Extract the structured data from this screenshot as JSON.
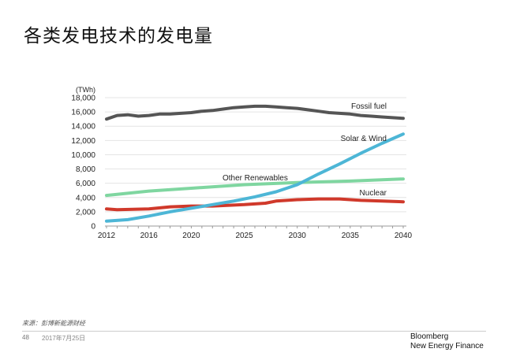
{
  "title": "各类发电技术的发电量",
  "chart_data": {
    "type": "line",
    "ylabel": "(TWh)",
    "xlim": [
      2012,
      2040
    ],
    "ylim": [
      0,
      18000
    ],
    "xticks": [
      2012,
      2016,
      2020,
      2025,
      2030,
      2035,
      2040
    ],
    "yticks": [
      0,
      2000,
      4000,
      6000,
      8000,
      10000,
      12000,
      14000,
      16000,
      18000
    ],
    "ytick_labels": [
      "0",
      "2,000",
      "4,000",
      "6,000",
      "8,000",
      "10,000",
      "12,000",
      "14,000",
      "16,000",
      "18,000"
    ],
    "grid": true,
    "series": [
      {
        "name": "Fossil fuel",
        "color": "#555555",
        "x": [
          2012,
          2013,
          2014,
          2015,
          2016,
          2017,
          2018,
          2019,
          2020,
          2021,
          2022,
          2023,
          2024,
          2025,
          2026,
          2027,
          2028,
          2029,
          2030,
          2031,
          2032,
          2033,
          2034,
          2035,
          2036,
          2037,
          2038,
          2039,
          2040
        ],
        "values": [
          15000,
          15500,
          15600,
          15400,
          15500,
          15700,
          15700,
          15800,
          15900,
          16100,
          16200,
          16400,
          16600,
          16700,
          16800,
          16800,
          16700,
          16600,
          16500,
          16300,
          16100,
          15900,
          15800,
          15700,
          15500,
          15400,
          15300,
          15200,
          15100
        ]
      },
      {
        "name": "Solar & Wind",
        "color": "#4db6d6",
        "x": [
          2012,
          2014,
          2016,
          2018,
          2020,
          2022,
          2024,
          2026,
          2028,
          2030,
          2032,
          2034,
          2036,
          2038,
          2040
        ],
        "values": [
          700,
          900,
          1400,
          2000,
          2500,
          3000,
          3500,
          4100,
          4800,
          5800,
          7300,
          8700,
          10200,
          11600,
          12900
        ]
      },
      {
        "name": "Other Renewables",
        "color": "#7fd6a0",
        "x": [
          2012,
          2016,
          2020,
          2025,
          2030,
          2035,
          2040
        ],
        "values": [
          4300,
          4900,
          5300,
          5800,
          6100,
          6300,
          6600
        ]
      },
      {
        "name": "Nuclear",
        "color": "#d0392b",
        "x": [
          2012,
          2013,
          2016,
          2018,
          2020,
          2022,
          2025,
          2027,
          2028,
          2030,
          2032,
          2034,
          2036,
          2038,
          2040
        ],
        "values": [
          2400,
          2300,
          2400,
          2700,
          2800,
          2800,
          3000,
          3200,
          3500,
          3700,
          3800,
          3800,
          3600,
          3500,
          3400
        ]
      }
    ]
  },
  "footer": {
    "source": "来源：彭博新能源财经",
    "page": "48",
    "date": "2017年7月25日",
    "logo_line1": "Bloomberg",
    "logo_line2": "New Energy Finance"
  }
}
